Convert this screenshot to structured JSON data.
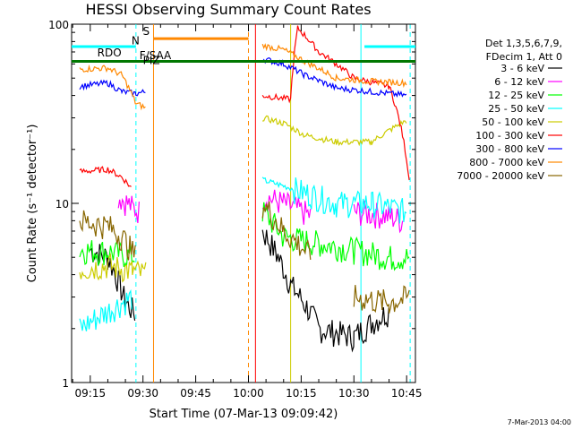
{
  "chart_data": {
    "type": "line",
    "title": "HESSI Observing Summary Count Rates",
    "xlabel": "Start Time (07-Mar-13 09:09:42)",
    "ylabel": "Count Rate (s⁻¹ detector⁻¹)",
    "footer": "7-Mar-2013 04:00",
    "yscale": "log",
    "ylim": [
      1,
      100
    ],
    "xlim_minutes": [
      "09:09:42",
      "10:47:30"
    ],
    "x_ticks": [
      "09:15",
      "09:30",
      "09:45",
      "10:00",
      "10:15",
      "10:30",
      "10:45"
    ],
    "y_ticks": [
      "1",
      "10",
      "100"
    ],
    "legend_header": [
      "Det 1,3,5,6,7,9,",
      "FDecim 1, Att 0"
    ],
    "legend_position": "right",
    "series": [
      {
        "name": "3 - 6 keV",
        "color": "#000000",
        "x": [
          "09:15",
          "09:20",
          "09:25",
          "09:28",
          "10:04",
          "10:08",
          "10:12",
          "10:20",
          "10:30",
          "10:40"
        ],
        "y": [
          5.5,
          5.0,
          2.8,
          2.4,
          7.0,
          5.2,
          3.5,
          2.0,
          1.8,
          2.5
        ]
      },
      {
        "name": "6 - 12 keV",
        "color": "#ff00ff",
        "x": [
          "09:23",
          "09:27",
          "09:29",
          "10:04",
          "10:10",
          "10:18",
          "10:30",
          "10:40",
          "10:44"
        ],
        "y": [
          11.0,
          9.5,
          9.0,
          11.0,
          10.0,
          8.5,
          9.0,
          8.5,
          8.0
        ]
      },
      {
        "name": "12 - 25 keV",
        "color": "#00ff00",
        "x": [
          "09:12",
          "09:20",
          "09:28",
          "10:04",
          "10:10",
          "10:20",
          "10:30",
          "10:40",
          "10:46"
        ],
        "y": [
          5.5,
          5.4,
          5.0,
          9.0,
          6.5,
          6.0,
          5.5,
          5.0,
          5.0
        ]
      },
      {
        "name": "25 - 50 keV",
        "color": "#00ffff",
        "x": [
          "09:12",
          "09:20",
          "09:27",
          "10:04",
          "10:10",
          "10:16",
          "10:25",
          "10:35",
          "10:45"
        ],
        "y": [
          2.0,
          2.5,
          3.0,
          13.5,
          12.5,
          11.5,
          10.0,
          10.0,
          9.0
        ]
      },
      {
        "name": "50 - 100 keV",
        "color": "#cccc00",
        "x": [
          "09:12",
          "09:20",
          "09:27",
          "09:31",
          "10:04",
          "10:10",
          "10:16",
          "10:25",
          "10:35",
          "10:45"
        ],
        "y": [
          4.3,
          4.5,
          4.2,
          4.0,
          30.0,
          28.0,
          24.0,
          22.0,
          22.0,
          29.0
        ]
      },
      {
        "name": "100 - 300 keV",
        "color": "#ff0000",
        "x": [
          "09:12",
          "09:20",
          "09:24",
          "09:27",
          "10:04",
          "10:12",
          "10:14",
          "10:20",
          "10:30",
          "10:40",
          "10:46"
        ],
        "y": [
          15.0,
          15.5,
          14.0,
          12.0,
          40.0,
          38.0,
          95.0,
          70.0,
          50.0,
          45.0,
          12.0
        ]
      },
      {
        "name": "300 - 800 keV",
        "color": "#0000ff",
        "x": [
          "09:12",
          "09:20",
          "09:24",
          "09:28",
          "09:31",
          "10:04",
          "10:10",
          "10:16",
          "10:25",
          "10:35",
          "10:45"
        ],
        "y": [
          45.0,
          47.0,
          42.0,
          41.0,
          42.0,
          64.0,
          60.0,
          52.0,
          44.0,
          42.0,
          40.0
        ]
      },
      {
        "name": "800 - 7000 keV",
        "color": "#ff8800",
        "x": [
          "09:12",
          "09:20",
          "09:24",
          "09:28",
          "09:31",
          "10:04",
          "10:10",
          "10:16",
          "10:25",
          "10:35",
          "10:45"
        ],
        "y": [
          56.0,
          57.0,
          52.0,
          36.0,
          34.0,
          76.0,
          72.0,
          62.0,
          50.0,
          48.0,
          47.0
        ]
      },
      {
        "name": "7000 - 20000 keV",
        "color": "#886600",
        "x": [
          "09:12",
          "09:20",
          "09:24",
          "09:28",
          "10:04",
          "10:10",
          "10:18",
          "10:30",
          "10:40",
          "10:46"
        ],
        "y": [
          8.0,
          7.5,
          6.5,
          5.0,
          10.0,
          7.0,
          5.0,
          3.0,
          2.8,
          3.0
        ]
      }
    ],
    "state_bars": [
      {
        "label": "RDO",
        "color": "#007700",
        "y": 62,
        "from": "09:09:42",
        "to": "10:47:30"
      },
      {
        "label": "S",
        "color": "#ff8800",
        "y": 83,
        "from": "09:33",
        "to": "10:00"
      },
      {
        "label": "N",
        "color": "#00ffff",
        "y": 75,
        "from": "09:09:42",
        "to": "09:28"
      },
      {
        "label": "N",
        "color": "#00ffff",
        "y": 75,
        "from": "10:33",
        "to": "10:47:30"
      }
    ],
    "state_bar_text": [
      "RDO",
      "S",
      "N",
      "F/SAA",
      "PIZ"
    ],
    "vertical_markers": [
      {
        "x": "09:28",
        "color": "#00ffff",
        "style": "dashed"
      },
      {
        "x": "09:33",
        "color": "#ff8800",
        "style": "solid"
      },
      {
        "x": "10:00",
        "color": "#ff8800",
        "style": "dashed"
      },
      {
        "x": "10:02",
        "color": "#ff0000",
        "style": "solid"
      },
      {
        "x": "10:12",
        "color": "#cccc00",
        "style": "solid"
      },
      {
        "x": "10:32",
        "color": "#00ffff",
        "style": "solid"
      },
      {
        "x": "10:46",
        "color": "#00ffff",
        "style": "dashed"
      }
    ]
  }
}
